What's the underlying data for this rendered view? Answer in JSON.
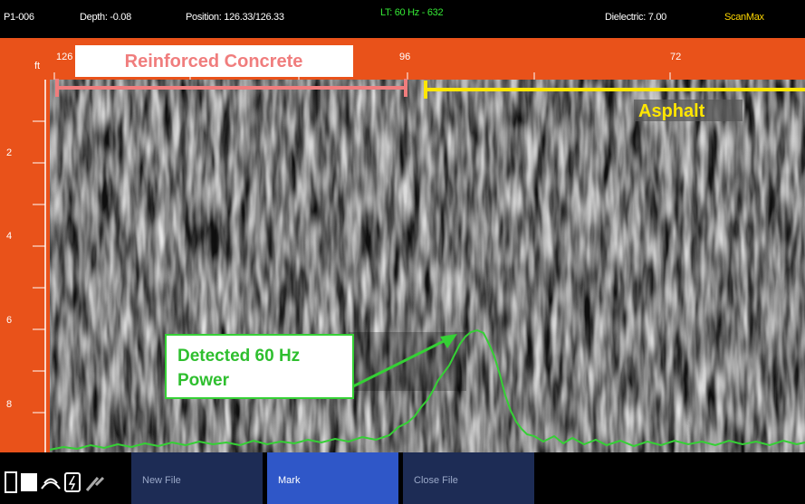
{
  "status_bar": {
    "file": "P1-006",
    "depth": "Depth: -0.08",
    "position": "Position: 126.33/126.33",
    "line_filter": "LT: 60 Hz - 632",
    "dielectric": "Dielectric: 7.00",
    "mode": "ScanMax"
  },
  "distance_ruler": {
    "labels": [
      "126",
      "96",
      "72"
    ]
  },
  "depth_ruler": {
    "unit": "ft",
    "labels": [
      "2",
      "4",
      "6",
      "8"
    ]
  },
  "annotations": {
    "concrete": "Reinforced Concrete",
    "asphalt": "Asphalt",
    "power": "Detected 60 Hz Power"
  },
  "toolbar": {
    "buttons": [
      "New File",
      "Mark",
      "Close File"
    ]
  }
}
